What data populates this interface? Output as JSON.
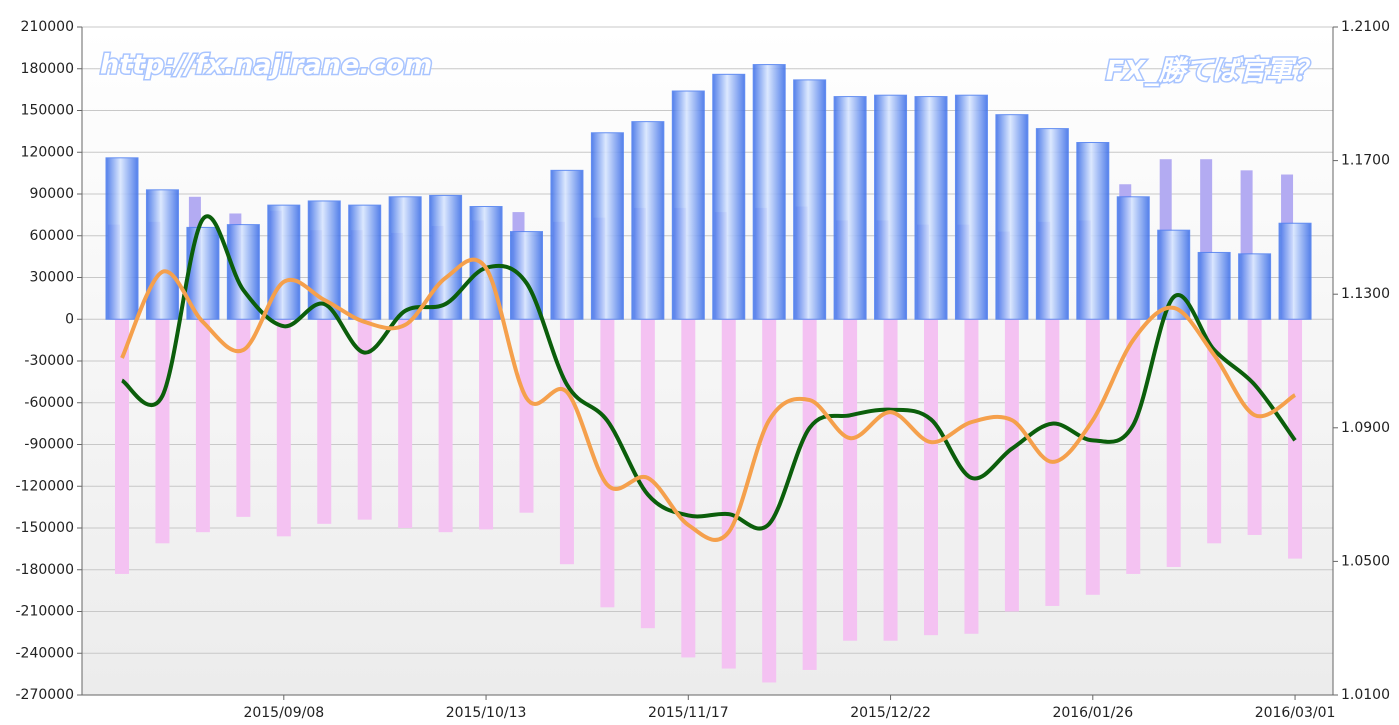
{
  "chart_data": {
    "type": "bar",
    "annotations": [
      "http://fx.najirane.com",
      "FX_勝てば官軍？"
    ],
    "categories": [
      null,
      null,
      null,
      null,
      "2015/09/08",
      null,
      null,
      null,
      null,
      "2015/10/13",
      null,
      null,
      null,
      null,
      "2015/11/17",
      null,
      null,
      null,
      null,
      "2015/12/22",
      null,
      null,
      null,
      null,
      "2016/01/26",
      null,
      null,
      null,
      null,
      "2016/03/01"
    ],
    "ylim": [
      -270000,
      210000
    ],
    "yticks": [
      -270000,
      -240000,
      -210000,
      -180000,
      -150000,
      -120000,
      -90000,
      -60000,
      -30000,
      0,
      30000,
      60000,
      90000,
      120000,
      150000,
      180000,
      210000
    ],
    "y2lim": [
      1.01,
      1.21
    ],
    "y2ticks": [
      {
        "value": 1.01,
        "label": "1.0100"
      },
      {
        "value": 1.05,
        "label": "1.0500"
      },
      {
        "value": 1.09,
        "label": "1.0900"
      },
      {
        "value": 1.13,
        "label": "1.1300"
      },
      {
        "value": 1.17,
        "label": "1.1700"
      },
      {
        "value": 1.21,
        "label": "1.2100"
      }
    ],
    "grid": true,
    "series": [
      {
        "type": "bar",
        "color": "#b3abf2",
        "values": [
          68000,
          70000,
          88000,
          76000,
          78000,
          64000,
          64000,
          62000,
          67000,
          71000,
          77000,
          70000,
          73000,
          80000,
          80000,
          77000,
          80000,
          81000,
          71000,
          71000,
          68000,
          68000,
          63000,
          70000,
          71000,
          97000,
          115000,
          115000,
          107000,
          104000
        ]
      },
      {
        "type": "bar",
        "color": "#f4c2f2",
        "values": [
          -183000,
          -161000,
          -153000,
          -142000,
          -156000,
          -147000,
          -144000,
          -150000,
          -153000,
          -151000,
          -139000,
          -176000,
          -207000,
          -222000,
          -243000,
          -251000,
          -261000,
          -252000,
          -231000,
          -231000,
          -227000,
          -226000,
          -210000,
          -206000,
          -198000,
          -183000,
          -178000,
          -161000,
          -155000,
          -172000
        ]
      },
      {
        "type": "bar",
        "color": "#4f7ff0",
        "values": [
          116000,
          93000,
          66000,
          68000,
          82000,
          85000,
          82000,
          88000,
          89000,
          81000,
          63000,
          107000,
          134000,
          142000,
          164000,
          176000,
          183000,
          172000,
          160000,
          161000,
          160000,
          161000,
          147000,
          137000,
          127000,
          88000,
          64000,
          48000,
          47000,
          69000
        ]
      },
      {
        "type": "line",
        "color": "#0b5e0b",
        "values": [
          -44000,
          -55000,
          72000,
          21000,
          -5000,
          11000,
          -24000,
          6000,
          11000,
          37000,
          26000,
          -47000,
          -73000,
          -126000,
          -141000,
          -140000,
          -147000,
          -78000,
          -69000,
          -65000,
          -72000,
          -114000,
          -93000,
          -75000,
          -87000,
          -76000,
          16000,
          -22000,
          -47000,
          -87000
        ]
      },
      {
        "type": "line",
        "axis": "y2",
        "color": "#f5a04c",
        "values": [
          1.1109,
          1.1367,
          1.1217,
          1.1133,
          1.1337,
          1.1283,
          1.1217,
          1.1208,
          1.1349,
          1.1378,
          1.0989,
          1.1007,
          1.0729,
          1.075,
          1.0609,
          1.0588,
          1.0923,
          1.0983,
          1.0869,
          1.0947,
          1.0857,
          1.0917,
          1.0923,
          1.0798,
          1.0923,
          1.1163,
          1.1259,
          1.1118,
          1.0938,
          1.0998
        ]
      }
    ]
  }
}
